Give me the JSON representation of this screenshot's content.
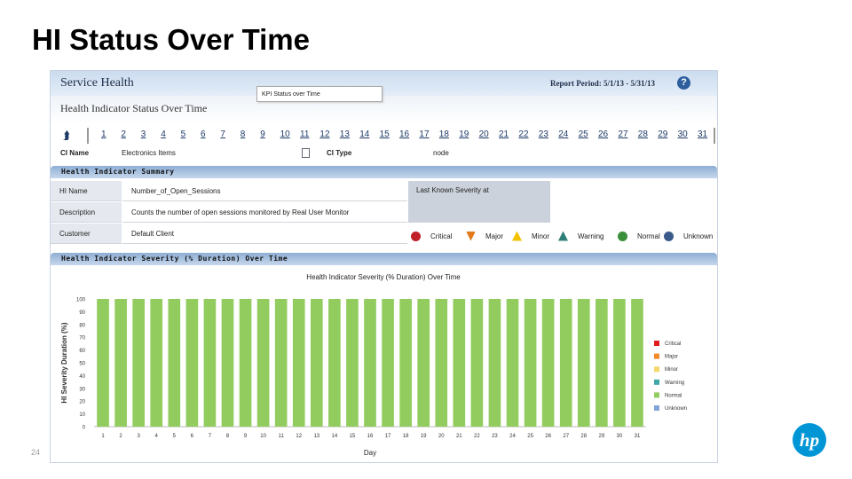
{
  "slide": {
    "title": "HI Status Over Time",
    "page_number": "24",
    "logo_text": "hp"
  },
  "app": {
    "title": "Service Health",
    "report_period": "Report Period: 5/1/13 - 5/31/13",
    "help_label": "?",
    "subtitle": "Health Indicator Status Over Time"
  },
  "day_nav": {
    "up_icon": "up-arrow-icon",
    "days": [
      "1",
      "2",
      "3",
      "4",
      "5",
      "6",
      "7",
      "8",
      "9",
      "10",
      "11",
      "12",
      "13",
      "14",
      "15",
      "16",
      "17",
      "18",
      "19",
      "20",
      "21",
      "22",
      "23",
      "24",
      "25",
      "26",
      "27",
      "28",
      "29",
      "30",
      "31"
    ]
  },
  "ci": {
    "name_label": "CI Name",
    "name_value": "Electronics Items",
    "type_label": "CI Type",
    "type_value": "node"
  },
  "tooltip": {
    "text": "KPI Status over Time"
  },
  "summary": {
    "title": "Health Indicator Summary",
    "rows": [
      {
        "label": "HI Name",
        "value": "Number_of_Open_Sessions"
      },
      {
        "label": "Description",
        "value": "Counts the number of open sessions monitored by Real User Monitor"
      },
      {
        "label": "Customer",
        "value": "Default Client"
      }
    ],
    "last_known_label": "Last Known Severity at",
    "severities": [
      {
        "label": "Critical",
        "icon": "critical-icon",
        "color": "#c0202a"
      },
      {
        "label": "Major",
        "icon": "major-icon",
        "color": "#e07a1a"
      },
      {
        "label": "Minor",
        "icon": "minor-icon",
        "color": "#f2c200"
      },
      {
        "label": "Warning",
        "icon": "warning-icon",
        "color": "#2f7f78"
      },
      {
        "label": "Normal",
        "icon": "normal-icon",
        "color": "#3a8f3a"
      },
      {
        "label": "Unknown",
        "icon": "unknown-icon",
        "color": "#3a5a8a"
      }
    ]
  },
  "severity_section": {
    "title": "Health Indicator Severity (% Duration) Over Time"
  },
  "chart_data": {
    "type": "bar",
    "title": "Health Indicator Severity (% Duration) Over Time",
    "xlabel": "Day",
    "ylabel": "HI Severity Duration (%)",
    "ylim": [
      0,
      100
    ],
    "yticks": [
      0,
      10,
      20,
      30,
      40,
      50,
      60,
      70,
      80,
      90,
      100
    ],
    "categories": [
      "1",
      "2",
      "3",
      "4",
      "5",
      "6",
      "7",
      "8",
      "9",
      "10",
      "11",
      "12",
      "13",
      "14",
      "15",
      "16",
      "17",
      "18",
      "19",
      "20",
      "21",
      "22",
      "23",
      "24",
      "25",
      "26",
      "27",
      "28",
      "29",
      "30",
      "31"
    ],
    "series": [
      {
        "name": "Critical",
        "color": "#e01e1e",
        "values": [
          0,
          0,
          0,
          0,
          0,
          0,
          0,
          0,
          0,
          0,
          0,
          0,
          0,
          0,
          0,
          0,
          0,
          0,
          0,
          0,
          0,
          0,
          0,
          0,
          0,
          0,
          0,
          0,
          0,
          0,
          0
        ]
      },
      {
        "name": "Major",
        "color": "#f08a2a",
        "values": [
          0,
          0,
          0,
          0,
          0,
          0,
          0,
          0,
          0,
          0,
          0,
          0,
          0,
          0,
          0,
          0,
          0,
          0,
          0,
          0,
          0,
          0,
          0,
          0,
          0,
          0,
          0,
          0,
          0,
          0,
          0
        ]
      },
      {
        "name": "Minor",
        "color": "#f5d76e",
        "values": [
          0,
          0,
          0,
          0,
          0,
          0,
          0,
          0,
          0,
          0,
          0,
          0,
          0,
          0,
          0,
          0,
          0,
          0,
          0,
          0,
          0,
          0,
          0,
          0,
          0,
          0,
          0,
          0,
          0,
          0,
          0
        ]
      },
      {
        "name": "Warning",
        "color": "#3fa7a8",
        "values": [
          0,
          0,
          0,
          0,
          0,
          0,
          0,
          0,
          0,
          0,
          0,
          0,
          0,
          0,
          0,
          0,
          0,
          0,
          0,
          0,
          0,
          0,
          0,
          0,
          0,
          0,
          0,
          0,
          0,
          0,
          0
        ]
      },
      {
        "name": "Normal",
        "color": "#92cc5e",
        "values": [
          100,
          100,
          100,
          100,
          100,
          100,
          100,
          100,
          100,
          100,
          100,
          100,
          100,
          100,
          100,
          100,
          100,
          100,
          100,
          100,
          100,
          100,
          100,
          100,
          100,
          100,
          100,
          100,
          100,
          100,
          100
        ]
      },
      {
        "name": "Unknown",
        "color": "#7fa6d6",
        "values": [
          0,
          0,
          0,
          0,
          0,
          0,
          0,
          0,
          0,
          0,
          0,
          0,
          0,
          0,
          0,
          0,
          0,
          0,
          0,
          0,
          0,
          0,
          0,
          0,
          0,
          0,
          0,
          0,
          0,
          0,
          0
        ]
      }
    ],
    "legend": "right",
    "grid": false
  }
}
